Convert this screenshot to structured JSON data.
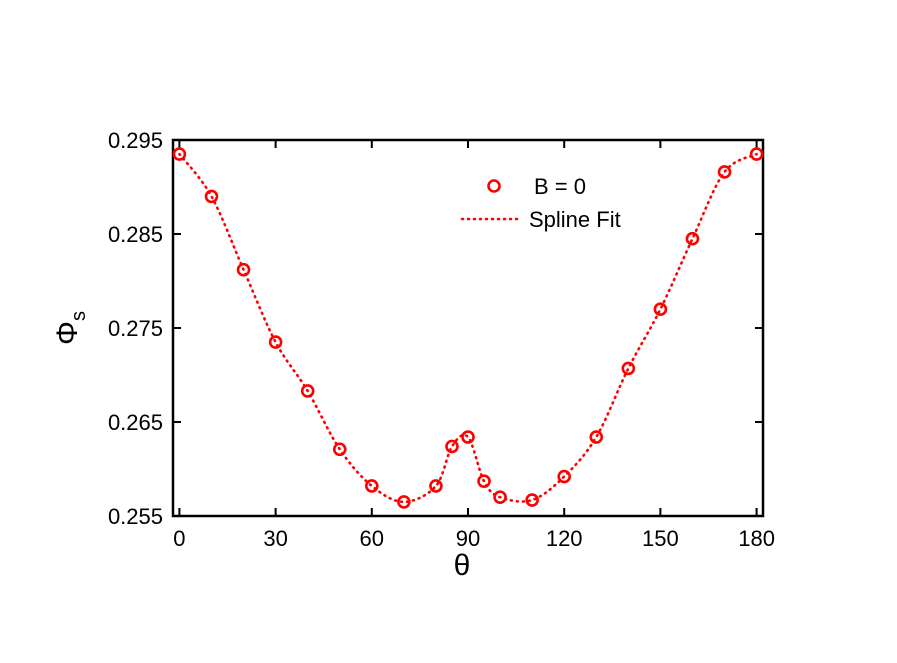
{
  "chart_data": {
    "type": "scatter",
    "xlabel": "θ",
    "ylabel_main": "Φ",
    "ylabel_sub": "s",
    "xlim": [
      -2,
      182
    ],
    "ylim": [
      0.255,
      0.295
    ],
    "xticks": [
      0,
      30,
      60,
      90,
      120,
      150,
      180
    ],
    "xtick_labels": [
      "0",
      "30",
      "60",
      "90",
      "120",
      "150",
      "180"
    ],
    "yticks": [
      0.255,
      0.265,
      0.275,
      0.285,
      0.295
    ],
    "ytick_labels": [
      "0.255",
      "0.265",
      "0.275",
      "0.285",
      "0.295"
    ],
    "grid": false,
    "legend_position": "top-right",
    "series": [
      {
        "name": "B = 0",
        "style": "markers",
        "marker": "circle",
        "color": "#ff0000",
        "x": [
          0,
          10,
          20,
          30,
          40,
          50,
          60,
          70,
          80,
          85,
          90,
          95,
          100,
          110,
          120,
          130,
          140,
          150,
          160,
          170,
          180
        ],
        "y": [
          0.2935,
          0.289,
          0.2812,
          0.2735,
          0.2683,
          0.2621,
          0.2582,
          0.2565,
          0.2582,
          0.2624,
          0.2634,
          0.2587,
          0.257,
          0.2567,
          0.2592,
          0.2634,
          0.2707,
          0.277,
          0.2845,
          0.2916,
          0.2935
        ]
      },
      {
        "name": "Spline Fit",
        "style": "dotted-line",
        "color": "#ff0000",
        "x": [
          0,
          10,
          20,
          30,
          40,
          50,
          60,
          70,
          80,
          85,
          90,
          95,
          100,
          110,
          120,
          130,
          140,
          150,
          160,
          170,
          180
        ],
        "y": [
          0.2935,
          0.289,
          0.2812,
          0.2735,
          0.2683,
          0.2621,
          0.2582,
          0.2565,
          0.2582,
          0.2624,
          0.2634,
          0.2587,
          0.257,
          0.2567,
          0.2592,
          0.2634,
          0.2707,
          0.277,
          0.2845,
          0.2916,
          0.2935
        ]
      }
    ]
  }
}
